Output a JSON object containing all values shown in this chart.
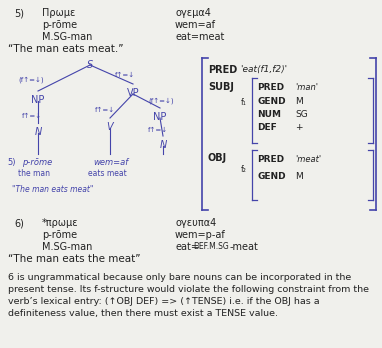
{
  "bg_color": "#f0f0ec",
  "line_color": "#4444aa",
  "text_color": "#222222",
  "sec5": {
    "num": "5)",
    "coptic1": "Πρωμε",
    "coptic2": "ογεμα4",
    "gloss1a": "p-rōme",
    "gloss2a": "wem=af",
    "gloss1b": "M.SG-man",
    "gloss2b": "eat=meat",
    "translation": "“The man eats meat.”"
  },
  "sec6": {
    "num": "6)",
    "coptic1": "*πρωμε",
    "coptic2": "ογευπα4",
    "gloss1a": "p-rōme",
    "gloss2a": "wem=p-af",
    "gloss1b": "M.SG-man",
    "gloss2b_parts": [
      "eat=",
      "DEF.M.SG",
      "-meat"
    ],
    "translation": "“The man eats the meat”"
  },
  "para_lines": [
    "6 is ungrammatical because only bare nouns can be incorporated in the",
    "present tense. Its f-structure would violate the following constraint from the",
    "verb’s lexical entry: (↑OBJ DEF) => (↑TENSE) i.e. if the OBJ has a",
    "definiteness value, then there must exist a TENSE value."
  ]
}
